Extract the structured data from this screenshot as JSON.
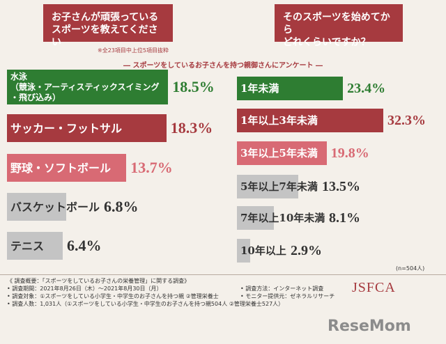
{
  "questions": [
    "お子さんが頑張っている\nスポーツを教えてください",
    "そのスポーツを始めてから\nどれくらいですか？"
  ],
  "note": "※全23項目中上位5項目抜粋",
  "subtitle": "― スポーツをしているお子さんを持つ親御さんにアンケート ―",
  "sample_size": "(n=504人)",
  "footer": {
    "left": "《 調査概要：「スポーツをしているお子さんの栄養管理」に関する調査》\n• 調査期間：2021年8月26日（木）〜2021年8月30日（月）\n• 調査対象：①スポーツをしている小学生・中学生のお子さんを持つ親 ②管理栄養士\n• 調査人数：1,031人（①スポーツをしている小学生・中学生のお子さんを持つ親504人 ②管理栄養士527人）",
    "right": "• 調査方法：インターネット調査\n• モニター提供元：ゼネラルリサーチ",
    "logo": "JSFCA"
  },
  "watermark": "ReseMom",
  "chart_data": [
    {
      "type": "bar",
      "orientation": "horizontal",
      "categories": [
        "水泳\n（競泳・アーティスティックスイミング\n・飛び込み）",
        "サッカー・フットサル",
        "野球・ソフトボール",
        "バスケットボール",
        "テニス"
      ],
      "values": [
        18.5,
        18.3,
        13.7,
        6.8,
        6.4
      ],
      "value_labels": [
        "18.5%",
        "18.3%",
        "13.7%",
        "6.8%",
        "6.4%"
      ],
      "colors": [
        "#2e7d32",
        "#a63a3f",
        "#d86a74",
        "#c4c4c4",
        "#c4c4c4"
      ],
      "label_colors": [
        "#ffffff",
        "#ffffff",
        "#ffffff",
        "#333333",
        "#333333"
      ],
      "value_colors": [
        "#2e7d32",
        "#a63a3f",
        "#d86a74",
        "#333333",
        "#333333"
      ],
      "xlim": [
        0,
        20
      ]
    },
    {
      "type": "bar",
      "orientation": "horizontal",
      "categories": [
        "1年未満",
        "1年以上3年未満",
        "3年以上5年未満",
        "5年以上7年未満",
        "7年以上10年未満",
        "10年以上"
      ],
      "values": [
        23.4,
        32.3,
        19.8,
        13.5,
        8.1,
        2.9
      ],
      "value_labels": [
        "23.4%",
        "32.3%",
        "19.8%",
        "13.5%",
        "8.1%",
        "2.9%"
      ],
      "colors": [
        "#2e7d32",
        "#a63a3f",
        "#d86a74",
        "#c4c4c4",
        "#c4c4c4",
        "#c4c4c4"
      ],
      "label_colors": [
        "#ffffff",
        "#ffffff",
        "#ffffff",
        "#333333",
        "#333333",
        "#333333"
      ],
      "value_colors": [
        "#2e7d32",
        "#a63a3f",
        "#d86a74",
        "#333333",
        "#333333",
        "#333333"
      ],
      "xlim": [
        0,
        40
      ]
    }
  ]
}
